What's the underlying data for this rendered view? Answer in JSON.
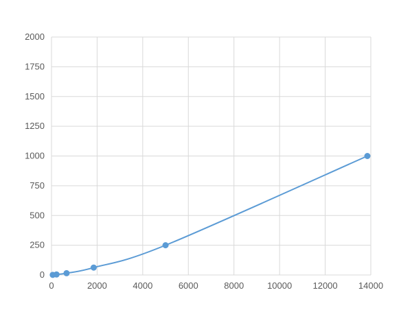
{
  "chart_data": {
    "type": "line",
    "title": "",
    "xlabel": "",
    "ylabel": "",
    "xlim": [
      0,
      14000
    ],
    "ylim": [
      0,
      2000
    ],
    "xticks": [
      0,
      2000,
      4000,
      6000,
      8000,
      10000,
      12000,
      14000
    ],
    "yticks": [
      0,
      250,
      500,
      750,
      1000,
      1250,
      1500,
      1750,
      2000
    ],
    "grid": true,
    "smooth": true,
    "markers": true,
    "color": "#5b9bd5",
    "gridColor": "#d9d9d9",
    "series": [
      {
        "x": [
          55,
          220,
          660,
          1850,
          5000,
          13850
        ],
        "y": [
          1,
          4,
          15,
          62,
          250,
          1000
        ]
      }
    ]
  }
}
